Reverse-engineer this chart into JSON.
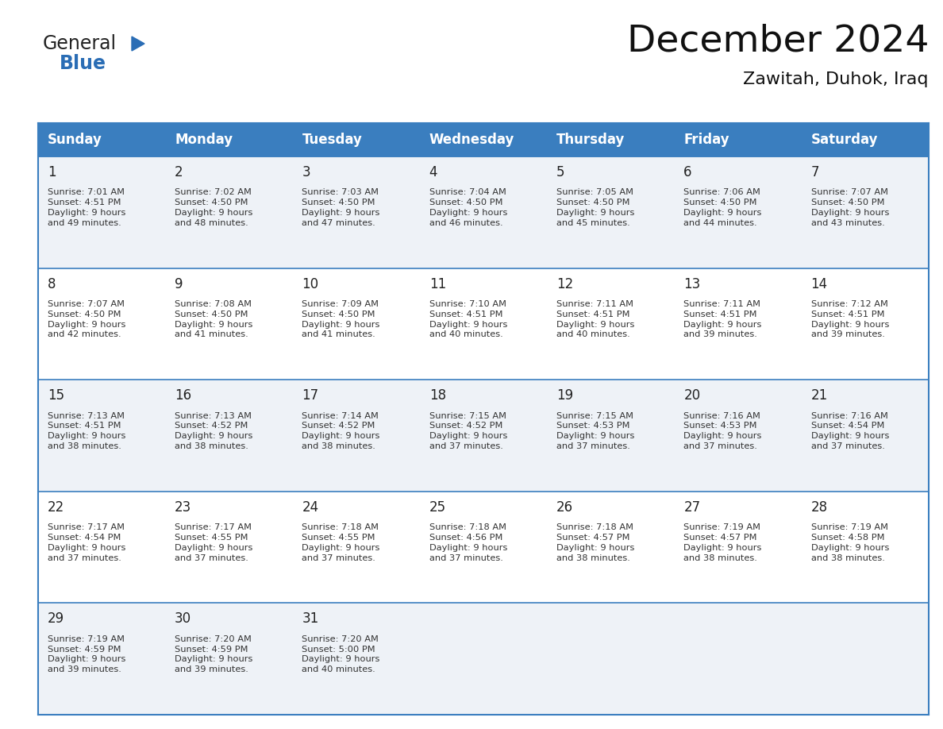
{
  "title": "December 2024",
  "subtitle": "Zawitah, Duhok, Iraq",
  "header_color": "#3A7EBF",
  "header_text_color": "#FFFFFF",
  "day_names": [
    "Sunday",
    "Monday",
    "Tuesday",
    "Wednesday",
    "Thursday",
    "Friday",
    "Saturday"
  ],
  "row_even_color": "#EEF2F7",
  "row_odd_color": "#FFFFFF",
  "border_color": "#3A7EBF",
  "cell_days": [
    [
      1,
      2,
      3,
      4,
      5,
      6,
      7
    ],
    [
      8,
      9,
      10,
      11,
      12,
      13,
      14
    ],
    [
      15,
      16,
      17,
      18,
      19,
      20,
      21
    ],
    [
      22,
      23,
      24,
      25,
      26,
      27,
      28
    ],
    [
      29,
      30,
      31,
      0,
      0,
      0,
      0
    ]
  ],
  "cell_data": [
    [
      "Sunrise: 7:01 AM\nSunset: 4:51 PM\nDaylight: 9 hours\nand 49 minutes.",
      "Sunrise: 7:02 AM\nSunset: 4:50 PM\nDaylight: 9 hours\nand 48 minutes.",
      "Sunrise: 7:03 AM\nSunset: 4:50 PM\nDaylight: 9 hours\nand 47 minutes.",
      "Sunrise: 7:04 AM\nSunset: 4:50 PM\nDaylight: 9 hours\nand 46 minutes.",
      "Sunrise: 7:05 AM\nSunset: 4:50 PM\nDaylight: 9 hours\nand 45 minutes.",
      "Sunrise: 7:06 AM\nSunset: 4:50 PM\nDaylight: 9 hours\nand 44 minutes.",
      "Sunrise: 7:07 AM\nSunset: 4:50 PM\nDaylight: 9 hours\nand 43 minutes."
    ],
    [
      "Sunrise: 7:07 AM\nSunset: 4:50 PM\nDaylight: 9 hours\nand 42 minutes.",
      "Sunrise: 7:08 AM\nSunset: 4:50 PM\nDaylight: 9 hours\nand 41 minutes.",
      "Sunrise: 7:09 AM\nSunset: 4:50 PM\nDaylight: 9 hours\nand 41 minutes.",
      "Sunrise: 7:10 AM\nSunset: 4:51 PM\nDaylight: 9 hours\nand 40 minutes.",
      "Sunrise: 7:11 AM\nSunset: 4:51 PM\nDaylight: 9 hours\nand 40 minutes.",
      "Sunrise: 7:11 AM\nSunset: 4:51 PM\nDaylight: 9 hours\nand 39 minutes.",
      "Sunrise: 7:12 AM\nSunset: 4:51 PM\nDaylight: 9 hours\nand 39 minutes."
    ],
    [
      "Sunrise: 7:13 AM\nSunset: 4:51 PM\nDaylight: 9 hours\nand 38 minutes.",
      "Sunrise: 7:13 AM\nSunset: 4:52 PM\nDaylight: 9 hours\nand 38 minutes.",
      "Sunrise: 7:14 AM\nSunset: 4:52 PM\nDaylight: 9 hours\nand 38 minutes.",
      "Sunrise: 7:15 AM\nSunset: 4:52 PM\nDaylight: 9 hours\nand 37 minutes.",
      "Sunrise: 7:15 AM\nSunset: 4:53 PM\nDaylight: 9 hours\nand 37 minutes.",
      "Sunrise: 7:16 AM\nSunset: 4:53 PM\nDaylight: 9 hours\nand 37 minutes.",
      "Sunrise: 7:16 AM\nSunset: 4:54 PM\nDaylight: 9 hours\nand 37 minutes."
    ],
    [
      "Sunrise: 7:17 AM\nSunset: 4:54 PM\nDaylight: 9 hours\nand 37 minutes.",
      "Sunrise: 7:17 AM\nSunset: 4:55 PM\nDaylight: 9 hours\nand 37 minutes.",
      "Sunrise: 7:18 AM\nSunset: 4:55 PM\nDaylight: 9 hours\nand 37 minutes.",
      "Sunrise: 7:18 AM\nSunset: 4:56 PM\nDaylight: 9 hours\nand 37 minutes.",
      "Sunrise: 7:18 AM\nSunset: 4:57 PM\nDaylight: 9 hours\nand 38 minutes.",
      "Sunrise: 7:19 AM\nSunset: 4:57 PM\nDaylight: 9 hours\nand 38 minutes.",
      "Sunrise: 7:19 AM\nSunset: 4:58 PM\nDaylight: 9 hours\nand 38 minutes."
    ],
    [
      "Sunrise: 7:19 AM\nSunset: 4:59 PM\nDaylight: 9 hours\nand 39 minutes.",
      "Sunrise: 7:20 AM\nSunset: 4:59 PM\nDaylight: 9 hours\nand 39 minutes.",
      "Sunrise: 7:20 AM\nSunset: 5:00 PM\nDaylight: 9 hours\nand 40 minutes.",
      "",
      "",
      "",
      ""
    ]
  ],
  "logo_text_general": "General",
  "logo_text_blue": "Blue",
  "title_fontsize": 34,
  "subtitle_fontsize": 16,
  "day_header_fontsize": 12,
  "day_num_fontsize": 12,
  "cell_text_fontsize": 8.2,
  "fig_width": 11.88,
  "fig_height": 9.18
}
